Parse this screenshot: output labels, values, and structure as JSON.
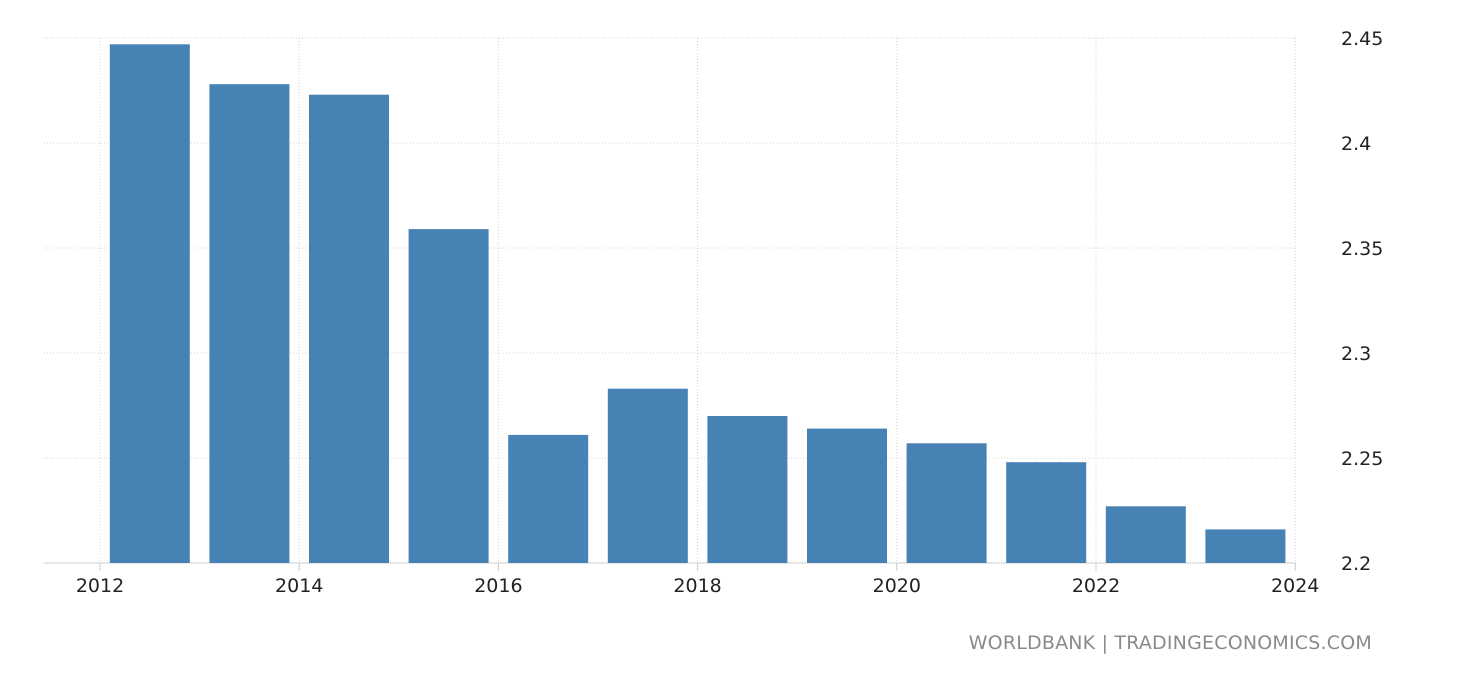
{
  "chart_data": {
    "type": "bar",
    "x": [
      2013,
      2014,
      2015,
      2016,
      2017,
      2018,
      2019,
      2020,
      2021,
      2022,
      2023,
      2024
    ],
    "values": [
      2.447,
      2.428,
      2.423,
      2.359,
      2.261,
      2.283,
      2.27,
      2.264,
      2.257,
      2.248,
      2.227,
      2.216
    ],
    "xticks": [
      "2012",
      "2014",
      "2016",
      "2018",
      "2020",
      "2022",
      "2024"
    ],
    "yticks": [
      "2.2",
      "2.25",
      "2.3",
      "2.35",
      "2.4",
      "2.45"
    ],
    "xlim": [
      2012,
      2024
    ],
    "ylim": [
      2.2,
      2.45
    ],
    "yaxis_side": "right",
    "grid": true,
    "bar_color": "#4682b4"
  },
  "source": "WORLDBANK | TRADINGECONOMICS.COM"
}
